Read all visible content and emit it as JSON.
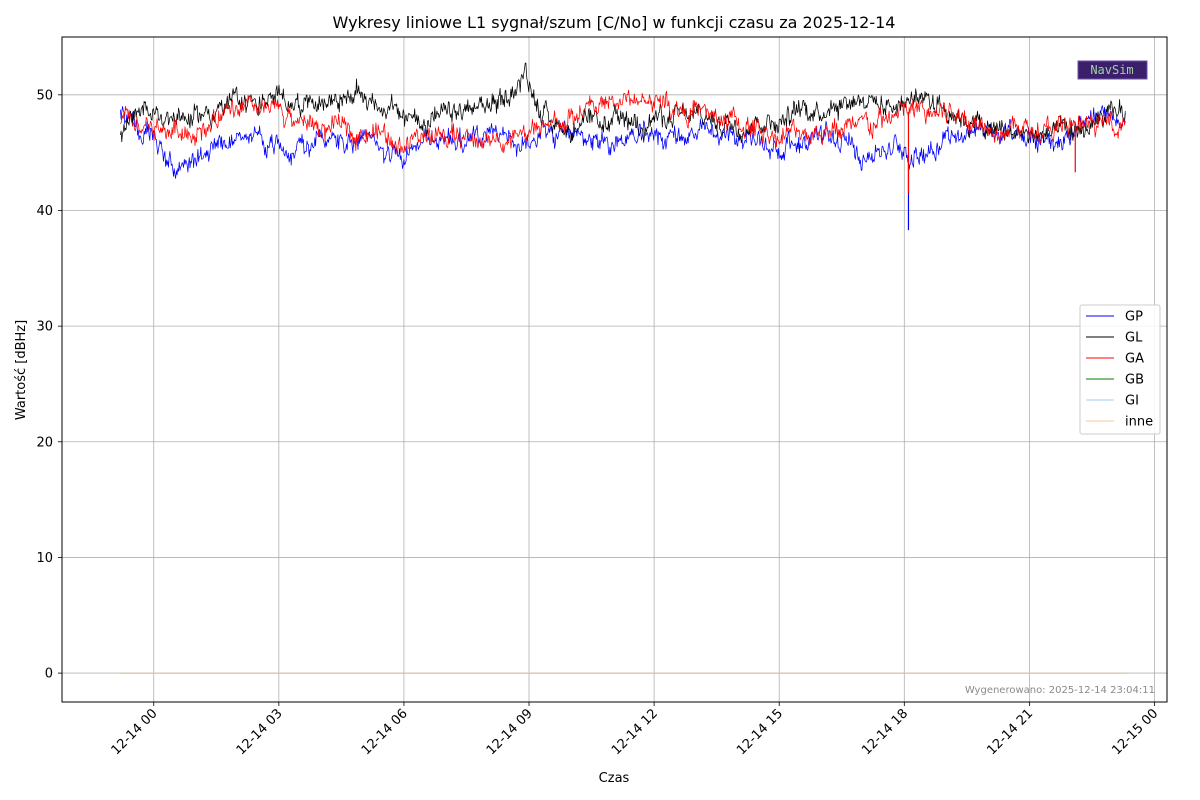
{
  "chart_data": {
    "type": "line",
    "title": "Wykresy liniowe L1 sygnał/szum [C/No] w funkcji czasu za 2025-12-14",
    "xlabel": "Czas",
    "ylabel": "Wartość [dBHz]",
    "x_unit": "hours",
    "x_start_hour": -0.8,
    "x_end_hour": 23.3,
    "xlim_hours": [
      -2.2,
      24.3
    ],
    "ylim": [
      -2.5,
      55
    ],
    "x_ticks": [
      {
        "hour": 0,
        "label": "12-14 00"
      },
      {
        "hour": 3,
        "label": "12-14 03"
      },
      {
        "hour": 6,
        "label": "12-14 06"
      },
      {
        "hour": 9,
        "label": "12-14 09"
      },
      {
        "hour": 12,
        "label": "12-14 12"
      },
      {
        "hour": 15,
        "label": "12-14 15"
      },
      {
        "hour": 18,
        "label": "12-14 18"
      },
      {
        "hour": 21,
        "label": "12-14 21"
      },
      {
        "hour": 24,
        "label": "12-15 00"
      }
    ],
    "y_ticks": [
      0,
      10,
      20,
      30,
      40,
      50
    ],
    "grid": true,
    "legend_position": "center-right",
    "series": [
      {
        "name": "GP",
        "color": "#0000ff",
        "x": [
          -0.8,
          0,
          0.5,
          1,
          1.5,
          2,
          3,
          4,
          5,
          6,
          7,
          8,
          9,
          10,
          11,
          12,
          13,
          14,
          15,
          16,
          17,
          18,
          18.2,
          19,
          20,
          21,
          22,
          23,
          23.3
        ],
        "values": [
          48.5,
          46.0,
          43.5,
          44.0,
          46.0,
          46.2,
          45.5,
          46.0,
          46.0,
          45.0,
          46.5,
          46.0,
          46.2,
          46.5,
          46.0,
          46.5,
          46.5,
          46.5,
          45.5,
          46.5,
          45.0,
          45.5,
          44.5,
          46.5,
          47.0,
          46.0,
          46.5,
          48.5,
          48.0
        ],
        "spikes": [
          {
            "hour": 18.1,
            "min": 38.3
          }
        ]
      },
      {
        "name": "GL",
        "color": "#000000",
        "x": [
          -0.8,
          0,
          1,
          2,
          3,
          4,
          5,
          6,
          7,
          8,
          8.7,
          8.9,
          9.3,
          10,
          11,
          12,
          13,
          14,
          15,
          16,
          17,
          17.5,
          18,
          18.5,
          19,
          20,
          21,
          22,
          23,
          23.3
        ],
        "values": [
          47.0,
          48.5,
          48.0,
          49.5,
          49.5,
          49.5,
          50.0,
          48.0,
          48.0,
          49.0,
          50.5,
          52.0,
          48.5,
          47.0,
          47.5,
          48.0,
          48.0,
          47.5,
          48.0,
          49.0,
          50.0,
          49.0,
          49.5,
          50.0,
          49.0,
          47.0,
          46.5,
          46.5,
          48.0,
          48.5
        ]
      },
      {
        "name": "GA",
        "color": "#ff0000",
        "x": [
          -0.8,
          0,
          1,
          2,
          3,
          4,
          5,
          6,
          7,
          8,
          9,
          10,
          11,
          12,
          13,
          14,
          15,
          16,
          17,
          18,
          19,
          20,
          21,
          22,
          23,
          23.3
        ],
        "values": [
          47.5,
          47.0,
          47.0,
          48.5,
          48.5,
          47.0,
          47.0,
          46.0,
          46.5,
          46.0,
          46.5,
          48.0,
          49.5,
          49.5,
          48.5,
          47.5,
          46.5,
          47.0,
          47.0,
          48.5,
          48.5,
          47.5,
          47.0,
          47.0,
          47.5,
          48.0
        ],
        "spikes": [
          {
            "hour": 22.1,
            "min": 43.3
          },
          {
            "hour": 18.1,
            "min": 41.5
          }
        ]
      },
      {
        "name": "GB",
        "color": "#008000",
        "x": [
          -0.8,
          23.3
        ],
        "values": [
          0,
          0
        ]
      },
      {
        "name": "GI",
        "color": "#a6c8f0",
        "x": [
          -0.8,
          23.3
        ],
        "values": [
          0,
          0
        ]
      },
      {
        "name": "inne",
        "color": "#f6c9a0",
        "x": [
          -0.8,
          23.3
        ],
        "values": [
          0,
          0
        ]
      }
    ],
    "footnote": "Wygenerowano: 2025-12-14 23:04:11",
    "logo": "NavSim"
  }
}
